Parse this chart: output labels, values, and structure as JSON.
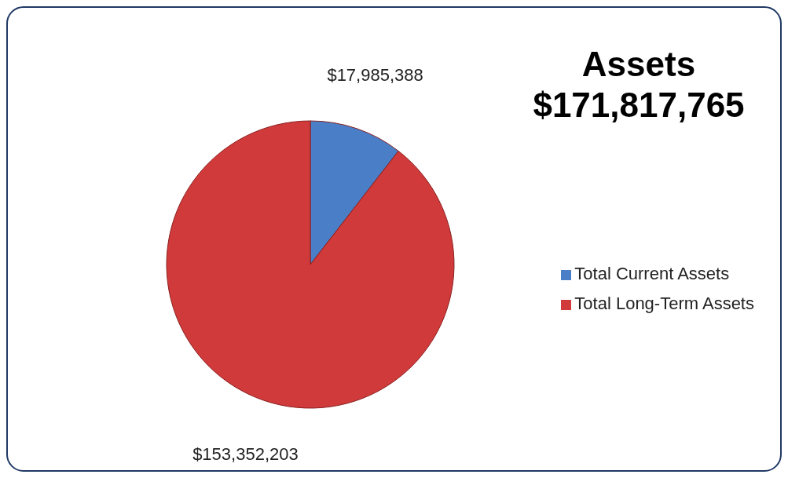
{
  "chart_data": {
    "type": "pie",
    "title": "Assets",
    "subtitle": "$171,817,765",
    "categories": [
      "Total Current Assets",
      "Total Long-Term Assets"
    ],
    "values": [
      17985388,
      153352203
    ],
    "colors": [
      "#4a7fc8",
      "#d03a3a"
    ],
    "value_labels": [
      "$17,985,388",
      "$153,352,203"
    ],
    "legend": "right"
  }
}
